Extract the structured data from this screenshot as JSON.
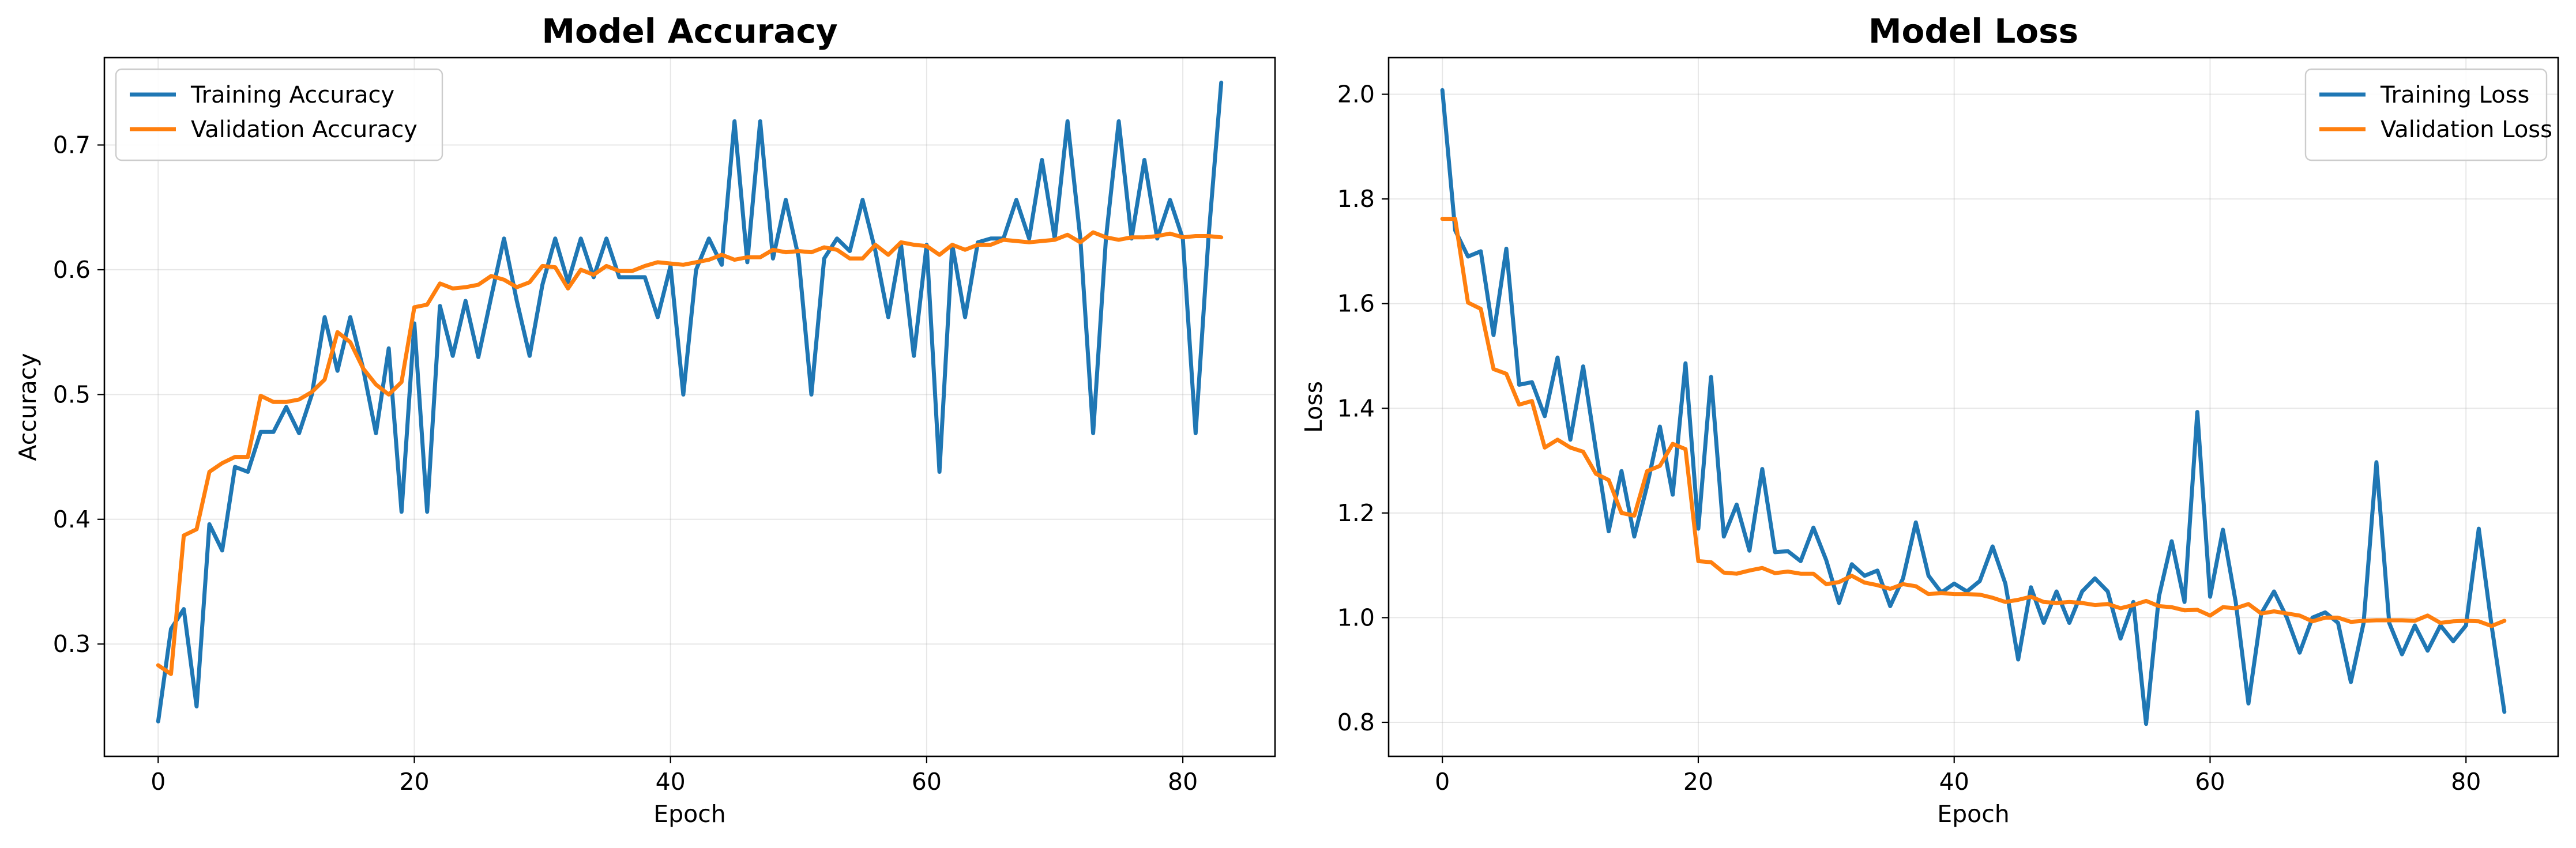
{
  "chart_data": [
    {
      "type": "line",
      "title": "Model Accuracy",
      "xlabel": "Epoch",
      "ylabel": "Accuracy",
      "xlim": [
        -4.2,
        87.2
      ],
      "ylim": [
        0.21,
        0.77
      ],
      "xticks": [
        0,
        20,
        40,
        60,
        80
      ],
      "yticks": [
        0.3,
        0.4,
        0.5,
        0.6,
        0.7
      ],
      "grid": true,
      "legend": "top-left",
      "series": [
        {
          "name": "Training Accuracy",
          "color": "#1f77b4",
          "x": [
            0,
            1,
            2,
            3,
            4,
            5,
            6,
            7,
            8,
            9,
            10,
            11,
            12,
            13,
            14,
            15,
            16,
            17,
            18,
            19,
            20,
            21,
            22,
            23,
            24,
            25,
            26,
            27,
            28,
            29,
            30,
            31,
            32,
            33,
            34,
            35,
            36,
            37,
            38,
            39,
            40,
            41,
            42,
            43,
            44,
            45,
            46,
            47,
            48,
            49,
            50,
            51,
            52,
            53,
            54,
            55,
            56,
            57,
            58,
            59,
            60,
            61,
            62,
            63,
            64,
            65,
            66,
            67,
            68,
            69,
            70,
            71,
            72,
            73,
            74,
            75,
            76,
            77,
            78,
            79,
            80,
            81,
            82,
            83
          ],
          "values": [
            0.238,
            0.312,
            0.328,
            0.25,
            0.396,
            0.375,
            0.442,
            0.438,
            0.47,
            0.47,
            0.49,
            0.469,
            0.5,
            0.562,
            0.519,
            0.562,
            0.521,
            0.469,
            0.537,
            0.406,
            0.557,
            0.406,
            0.571,
            0.531,
            0.575,
            0.53,
            0.578,
            0.625,
            0.575,
            0.531,
            0.588,
            0.625,
            0.59,
            0.625,
            0.594,
            0.625,
            0.594,
            0.594,
            0.594,
            0.562,
            0.603,
            0.5,
            0.6,
            0.625,
            0.604,
            0.719,
            0.606,
            0.719,
            0.609,
            0.656,
            0.61,
            0.5,
            0.609,
            0.625,
            0.615,
            0.656,
            0.615,
            0.562,
            0.62,
            0.531,
            0.62,
            0.438,
            0.62,
            0.562,
            0.622,
            0.625,
            0.625,
            0.656,
            0.625,
            0.688,
            0.625,
            0.719,
            0.625,
            0.469,
            0.625,
            0.719,
            0.625,
            0.688,
            0.625,
            0.656,
            0.625,
            0.469,
            0.625,
            0.75
          ]
        },
        {
          "name": "Validation Accuracy",
          "color": "#ff7f0e",
          "x": [
            0,
            1,
            2,
            3,
            4,
            5,
            6,
            7,
            8,
            9,
            10,
            11,
            12,
            13,
            14,
            15,
            16,
            17,
            18,
            19,
            20,
            21,
            22,
            23,
            24,
            25,
            26,
            27,
            28,
            29,
            30,
            31,
            32,
            33,
            34,
            35,
            36,
            37,
            38,
            39,
            40,
            41,
            42,
            43,
            44,
            45,
            46,
            47,
            48,
            49,
            50,
            51,
            52,
            53,
            54,
            55,
            56,
            57,
            58,
            59,
            60,
            61,
            62,
            63,
            64,
            65,
            66,
            67,
            68,
            69,
            70,
            71,
            72,
            73,
            74,
            75,
            76,
            77,
            78,
            79,
            80,
            81,
            82,
            83
          ],
          "values": [
            0.283,
            0.276,
            0.387,
            0.392,
            0.438,
            0.445,
            0.45,
            0.45,
            0.499,
            0.494,
            0.494,
            0.496,
            0.502,
            0.512,
            0.55,
            0.542,
            0.521,
            0.508,
            0.5,
            0.51,
            0.57,
            0.572,
            0.589,
            0.585,
            0.586,
            0.588,
            0.595,
            0.592,
            0.586,
            0.59,
            0.603,
            0.602,
            0.585,
            0.6,
            0.596,
            0.603,
            0.599,
            0.599,
            0.603,
            0.606,
            0.605,
            0.604,
            0.606,
            0.608,
            0.612,
            0.608,
            0.61,
            0.61,
            0.616,
            0.614,
            0.615,
            0.614,
            0.618,
            0.616,
            0.609,
            0.609,
            0.62,
            0.612,
            0.622,
            0.62,
            0.619,
            0.612,
            0.62,
            0.616,
            0.62,
            0.62,
            0.624,
            0.623,
            0.622,
            0.623,
            0.624,
            0.628,
            0.622,
            0.63,
            0.626,
            0.624,
            0.626,
            0.626,
            0.627,
            0.629,
            0.626,
            0.627,
            0.627,
            0.626
          ]
        }
      ]
    },
    {
      "type": "line",
      "title": "Model Loss",
      "xlabel": "Epoch",
      "ylabel": "Loss",
      "xlim": [
        -4.2,
        87.2
      ],
      "ylim": [
        0.735,
        2.07
      ],
      "xticks": [
        0,
        20,
        40,
        60,
        80
      ],
      "yticks": [
        0.8,
        1.0,
        1.2,
        1.4,
        1.6,
        1.8,
        2.0
      ],
      "grid": true,
      "legend": "top-right",
      "series": [
        {
          "name": "Training Loss",
          "color": "#1f77b4",
          "x": [
            0,
            1,
            2,
            3,
            4,
            5,
            6,
            7,
            8,
            9,
            10,
            11,
            12,
            13,
            14,
            15,
            16,
            17,
            18,
            19,
            20,
            21,
            22,
            23,
            24,
            25,
            26,
            27,
            28,
            29,
            30,
            31,
            32,
            33,
            34,
            35,
            36,
            37,
            38,
            39,
            40,
            41,
            42,
            43,
            44,
            45,
            46,
            47,
            48,
            49,
            50,
            51,
            52,
            53,
            54,
            55,
            56,
            57,
            58,
            59,
            60,
            61,
            62,
            63,
            64,
            65,
            66,
            67,
            68,
            69,
            70,
            71,
            72,
            73,
            74,
            75,
            76,
            77,
            78,
            79,
            80,
            81,
            82,
            83
          ],
          "values": [
            2.008,
            1.74,
            1.69,
            1.7,
            1.54,
            1.705,
            1.445,
            1.45,
            1.385,
            1.497,
            1.34,
            1.48,
            1.32,
            1.165,
            1.28,
            1.155,
            1.252,
            1.365,
            1.235,
            1.486,
            1.17,
            1.46,
            1.155,
            1.216,
            1.128,
            1.284,
            1.125,
            1.127,
            1.108,
            1.172,
            1.11,
            1.028,
            1.102,
            1.08,
            1.09,
            1.022,
            1.075,
            1.182,
            1.08,
            1.048,
            1.065,
            1.05,
            1.07,
            1.136,
            1.065,
            0.92,
            1.058,
            0.99,
            1.05,
            0.99,
            1.05,
            1.075,
            1.05,
            0.96,
            1.03,
            0.797,
            1.04,
            1.146,
            1.03,
            1.393,
            1.04,
            1.168,
            1.03,
            0.836,
            1.008,
            1.05,
            1.0,
            0.933,
            1.0,
            1.01,
            0.99,
            0.877,
            0.99,
            1.297,
            0.99,
            0.93,
            0.985,
            0.937,
            0.985,
            0.955,
            0.985,
            1.17,
            0.985,
            0.82
          ]
        },
        {
          "name": "Validation Loss",
          "color": "#ff7f0e",
          "x": [
            0,
            1,
            2,
            3,
            4,
            5,
            6,
            7,
            8,
            9,
            10,
            11,
            12,
            13,
            14,
            15,
            16,
            17,
            18,
            19,
            20,
            21,
            22,
            23,
            24,
            25,
            26,
            27,
            28,
            29,
            30,
            31,
            32,
            33,
            34,
            35,
            36,
            37,
            38,
            39,
            40,
            41,
            42,
            43,
            44,
            45,
            46,
            47,
            48,
            49,
            50,
            51,
            52,
            53,
            54,
            55,
            56,
            57,
            58,
            59,
            60,
            61,
            62,
            63,
            64,
            65,
            66,
            67,
            68,
            69,
            70,
            71,
            72,
            73,
            74,
            75,
            76,
            77,
            78,
            79,
            80,
            81,
            82,
            83
          ],
          "values": [
            1.762,
            1.762,
            1.602,
            1.59,
            1.475,
            1.466,
            1.407,
            1.414,
            1.325,
            1.34,
            1.325,
            1.317,
            1.275,
            1.263,
            1.2,
            1.195,
            1.28,
            1.29,
            1.332,
            1.322,
            1.108,
            1.106,
            1.086,
            1.084,
            1.09,
            1.095,
            1.085,
            1.088,
            1.084,
            1.084,
            1.064,
            1.068,
            1.08,
            1.067,
            1.062,
            1.055,
            1.064,
            1.06,
            1.045,
            1.047,
            1.045,
            1.045,
            1.044,
            1.038,
            1.03,
            1.034,
            1.04,
            1.03,
            1.028,
            1.03,
            1.028,
            1.024,
            1.026,
            1.018,
            1.024,
            1.032,
            1.022,
            1.02,
            1.014,
            1.015,
            1.004,
            1.02,
            1.018,
            1.026,
            1.008,
            1.012,
            1.008,
            1.004,
            0.993,
            1.0,
            1.0,
            0.992,
            0.994,
            0.995,
            0.995,
            0.995,
            0.994,
            1.004,
            0.99,
            0.993,
            0.994,
            0.993,
            0.984,
            0.994
          ]
        }
      ]
    }
  ]
}
